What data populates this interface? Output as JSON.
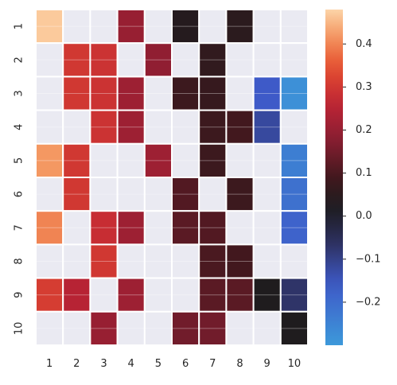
{
  "chart_data": {
    "type": "heatmap",
    "title": "",
    "xlabel": "",
    "ylabel": "",
    "x_categories": [
      "1",
      "2",
      "3",
      "4",
      "5",
      "6",
      "7",
      "8",
      "9",
      "10"
    ],
    "y_categories": [
      "1",
      "2",
      "3",
      "4",
      "5",
      "6",
      "7",
      "8",
      "9",
      "10"
    ],
    "color_scale": {
      "vmin": -0.3,
      "vmax": 0.48,
      "center": 0,
      "colormap": "icefire",
      "ticks": [
        0.4,
        0.3,
        0.2,
        0.1,
        0.0,
        -0.1,
        -0.2
      ],
      "tick_labels": [
        "0.4",
        "0.3",
        "0.2",
        "0.1",
        "0.0",
        "−0.1",
        "−0.2"
      ]
    },
    "masked_color": "#eaeaf2",
    "grid_color": "#ffffff",
    "values": [
      [
        0.47,
        null,
        null,
        0.2,
        null,
        0.04,
        null,
        0.05,
        null,
        null
      ],
      [
        null,
        0.3,
        0.29,
        null,
        0.19,
        null,
        0.06,
        null,
        null,
        null
      ],
      [
        null,
        0.3,
        0.29,
        0.21,
        null,
        0.08,
        0.07,
        null,
        -0.16,
        -0.28
      ],
      [
        null,
        null,
        0.29,
        0.21,
        null,
        null,
        0.08,
        0.09,
        -0.12,
        null
      ],
      [
        0.42,
        0.3,
        null,
        null,
        0.21,
        null,
        0.08,
        null,
        null,
        -0.24
      ],
      [
        null,
        0.3,
        null,
        null,
        null,
        0.11,
        null,
        0.08,
        null,
        -0.21
      ],
      [
        0.4,
        null,
        0.28,
        0.21,
        null,
        0.12,
        0.11,
        null,
        null,
        -0.18
      ],
      [
        null,
        null,
        0.3,
        null,
        null,
        null,
        0.1,
        0.09,
        null,
        null
      ],
      [
        0.31,
        0.25,
        null,
        0.21,
        null,
        null,
        0.12,
        0.12,
        0.03,
        -0.07
      ],
      [
        null,
        null,
        0.2,
        null,
        null,
        0.15,
        0.15,
        null,
        null,
        0.03
      ]
    ]
  }
}
